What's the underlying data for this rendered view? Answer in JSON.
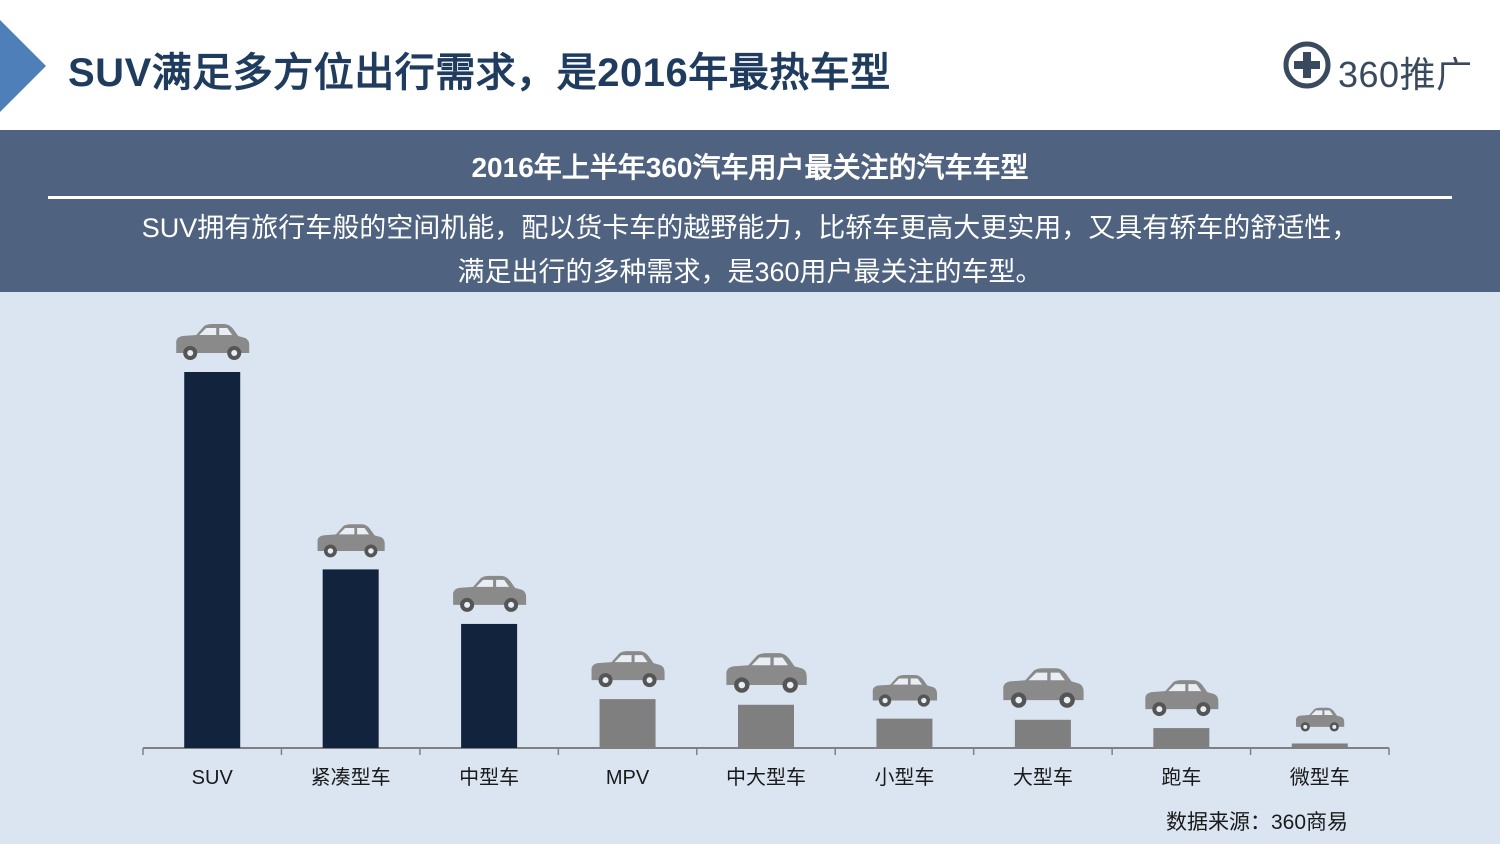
{
  "page": {
    "title": "SUV满足多方位出行需求，是2016年最热车型",
    "logo_text": "360推广"
  },
  "banner": {
    "title": "2016年上半年360汽车用户最关注的汽车车型",
    "desc_line1": "SUV拥有旅行车般的空间机能，配以货卡车的越野能力，比轿车更高大更实用，又具有轿车的舒适性，",
    "desc_line2": "满足出行的多种需求，是360用户最关注的车型。"
  },
  "source": "数据来源：360商易",
  "colors": {
    "title": "#1f3c5e",
    "banner": "#4f6381",
    "chart_bg": "#dbe5f1",
    "bar_highlight": "#12233e",
    "bar_normal": "#7f7f7f",
    "car_icon": "#8a8a8a",
    "axis": "#808080"
  },
  "chart_data": {
    "type": "bar",
    "title": "2016年上半年360汽车用户最关注的汽车车型",
    "categories": [
      "SUV",
      "紧凑型车",
      "中型车",
      "MPV",
      "中大型车",
      "小型车",
      "大型车",
      "跑车",
      "微型车"
    ],
    "values": [
      100,
      47.5,
      33,
      13,
      11.5,
      7.8,
      7.5,
      5.3,
      1.2
    ],
    "highlighted": [
      true,
      true,
      true,
      false,
      false,
      false,
      false,
      false,
      false
    ],
    "icons": [
      "suv-car-icon",
      "compact-car-icon",
      "sedan-car-icon",
      "mpv-car-icon",
      "full-size-sedan-icon",
      "hatchback-car-icon",
      "large-sedan-icon",
      "convertible-car-icon",
      "mini-car-icon"
    ],
    "xlabel": "",
    "ylabel": "",
    "ylim": [
      0,
      100
    ],
    "grid": false
  }
}
